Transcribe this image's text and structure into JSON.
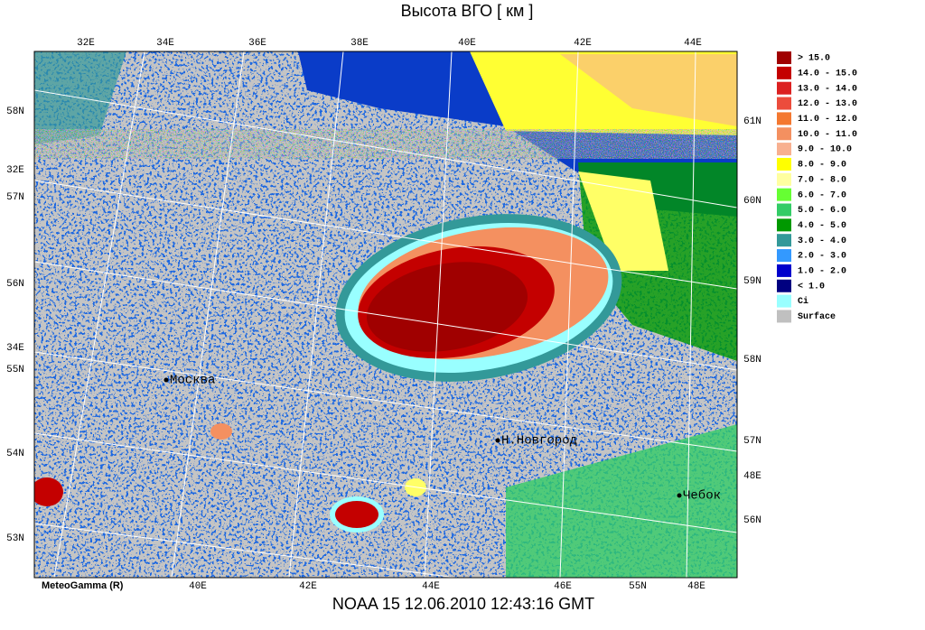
{
  "title": "Высота ВГО [ км ]",
  "footer": "NOAA 15  12.06.2010  12:43:16 GMT",
  "watermark": "MeteoGamma (R)",
  "map": {
    "top_labels": [
      "32E",
      "34E",
      "36E",
      "38E",
      "40E",
      "42E",
      "44E"
    ],
    "left_labels": [
      "58N",
      "32E",
      "57N",
      "56N",
      "34E",
      "55N",
      "54N",
      "53N"
    ],
    "right_labels": [
      "61N",
      "60N",
      "59N",
      "58N",
      "57N",
      "48E",
      "56N"
    ],
    "bottom_labels": [
      "40E",
      "42E",
      "44E",
      "46E",
      "55N",
      "48E"
    ],
    "cities": [
      "Москва",
      "Н.Новгород",
      "Чебок"
    ]
  },
  "legend": [
    {
      "label": ">  15.0",
      "color": "#a00000"
    },
    {
      "label": "14.0 -  15.0",
      "color": "#c40000"
    },
    {
      "label": "13.0 -  14.0",
      "color": "#dc2020"
    },
    {
      "label": "12.0 -  13.0",
      "color": "#ec4c3c"
    },
    {
      "label": "11.0 -  12.0",
      "color": "#f47830"
    },
    {
      "label": "10.0 -  11.0",
      "color": "#f49060"
    },
    {
      "label": "9.0 -  10.0",
      "color": "#f8b090"
    },
    {
      "label": "8.0 -   9.0",
      "color": "#ffff00"
    },
    {
      "label": "7.0 -   8.0",
      "color": "#ffffa0"
    },
    {
      "label": "6.0 -   7.0",
      "color": "#66ff33"
    },
    {
      "label": "5.0 -   6.0",
      "color": "#33cc66"
    },
    {
      "label": "4.0 -   5.0",
      "color": "#009900"
    },
    {
      "label": "3.0 -   4.0",
      "color": "#339999"
    },
    {
      "label": "2.0 -   3.0",
      "color": "#3399ff"
    },
    {
      "label": "1.0 -   2.0",
      "color": "#0000cc"
    },
    {
      "label": "<   1.0",
      "color": "#000080"
    },
    {
      "label": "Ci",
      "color": "#99ffff"
    },
    {
      "label": "Surface",
      "color": "#c0c0c0"
    }
  ]
}
